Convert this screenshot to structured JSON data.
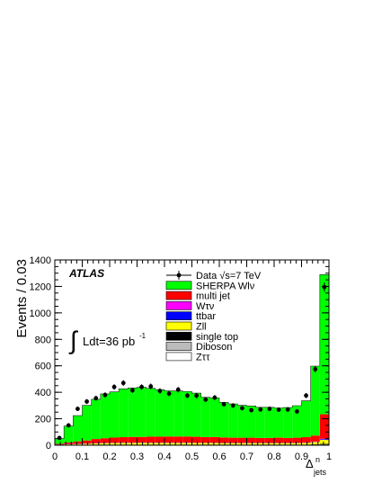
{
  "chart_data": {
    "type": "bar",
    "experiment_label": "ATLAS",
    "luminosity_label": "Ldt=36 pb",
    "luminosity_exponent": "-1",
    "xlabel": "Δ",
    "xlabel_super": "n",
    "xlabel_sub": "jets",
    "ylabel": "Events / 0.03",
    "xlim": [
      0,
      1
    ],
    "ylim": [
      0,
      1400
    ],
    "x_ticks": [
      "0",
      "0.1",
      "0.2",
      "0.3",
      "0.4",
      "0.5",
      "0.6",
      "0.7",
      "0.8",
      "0.9",
      "1"
    ],
    "y_ticks": [
      "0",
      "200",
      "400",
      "600",
      "800",
      "1000",
      "1200",
      "1400"
    ],
    "bin_width": 0.0333,
    "bins_low_edges": [
      0.0,
      0.0333,
      0.0667,
      0.1,
      0.1333,
      0.1667,
      0.2,
      0.2333,
      0.2667,
      0.3,
      0.3333,
      0.3667,
      0.4,
      0.4333,
      0.4667,
      0.5,
      0.5333,
      0.5667,
      0.6,
      0.6333,
      0.6667,
      0.7,
      0.7333,
      0.7667,
      0.8,
      0.8333,
      0.8667,
      0.9,
      0.9333,
      0.9667
    ],
    "legend": [
      {
        "label": "Data √s=7 TeV",
        "marker": "point"
      },
      {
        "label": "SHERPA Wlν",
        "color": "#00ff00"
      },
      {
        "label": "multi jet",
        "color": "#ff0000"
      },
      {
        "label": "Wτν",
        "color": "#ff00ff"
      },
      {
        "label": "ttbar",
        "color": "#0000ff"
      },
      {
        "label": "Zll",
        "color": "#ffff00"
      },
      {
        "label": "single top",
        "color": "#000000"
      },
      {
        "label": "Diboson",
        "color": "#bbbbbb"
      },
      {
        "label": "Zττ",
        "color": "#ffffff"
      }
    ],
    "series": [
      {
        "name": "Zττ",
        "color": "#ffffff",
        "values": [
          1,
          1,
          1,
          1,
          1,
          1,
          1,
          1,
          1,
          1,
          1,
          1,
          1,
          1,
          1,
          1,
          1,
          1,
          1,
          1,
          1,
          1,
          1,
          1,
          1,
          1,
          1,
          1,
          1,
          2
        ]
      },
      {
        "name": "Diboson",
        "color": "#bbbbbb",
        "values": [
          1,
          1,
          1,
          1,
          1,
          1,
          1,
          1,
          1,
          1,
          1,
          1,
          1,
          1,
          1,
          1,
          1,
          1,
          1,
          1,
          1,
          1,
          1,
          1,
          1,
          1,
          1,
          1,
          2,
          3
        ]
      },
      {
        "name": "single top",
        "color": "#000000",
        "values": [
          1,
          2,
          2,
          2,
          3,
          3,
          3,
          3,
          3,
          3,
          3,
          3,
          3,
          3,
          3,
          3,
          3,
          3,
          3,
          3,
          3,
          3,
          3,
          3,
          3,
          3,
          3,
          3,
          3,
          5
        ]
      },
      {
        "name": "Zll",
        "color": "#ffff00",
        "values": [
          2,
          4,
          6,
          8,
          10,
          12,
          13,
          14,
          14,
          14,
          14,
          14,
          14,
          14,
          14,
          13,
          13,
          13,
          12,
          12,
          12,
          12,
          12,
          12,
          12,
          12,
          12,
          14,
          18,
          30
        ]
      },
      {
        "name": "ttbar",
        "color": "#0000ff",
        "values": [
          0,
          1,
          1,
          1,
          1,
          1,
          1,
          1,
          1,
          1,
          1,
          1,
          1,
          1,
          1,
          1,
          1,
          1,
          1,
          1,
          1,
          1,
          1,
          1,
          1,
          1,
          1,
          1,
          2,
          6
        ]
      },
      {
        "name": "Wτν",
        "color": "#ff00ff",
        "values": [
          0,
          1,
          1,
          1,
          1,
          1,
          1,
          1,
          1,
          1,
          1,
          1,
          1,
          1,
          1,
          1,
          1,
          1,
          1,
          1,
          1,
          1,
          1,
          1,
          1,
          1,
          1,
          1,
          2,
          3
        ]
      },
      {
        "name": "multi jet",
        "color": "#ff0000",
        "values": [
          5,
          10,
          17,
          22,
          30,
          34,
          38,
          40,
          42,
          42,
          44,
          44,
          45,
          45,
          45,
          44,
          42,
          42,
          40,
          38,
          38,
          38,
          36,
          36,
          38,
          36,
          38,
          40,
          45,
          185
        ]
      },
      {
        "name": "SHERPA Wlν",
        "color": "#00ff00",
        "values": [
          40,
          125,
          195,
          265,
          300,
          335,
          345,
          365,
          370,
          375,
          365,
          355,
          345,
          345,
          340,
          330,
          300,
          295,
          265,
          255,
          245,
          240,
          232,
          232,
          225,
          230,
          242,
          275,
          525,
          1055
        ]
      }
    ],
    "data_points": {
      "x": [
        0.0167,
        0.05,
        0.0833,
        0.1167,
        0.15,
        0.1833,
        0.2167,
        0.25,
        0.2833,
        0.3167,
        0.35,
        0.3833,
        0.4167,
        0.45,
        0.4833,
        0.5167,
        0.55,
        0.5833,
        0.6167,
        0.65,
        0.6833,
        0.7167,
        0.75,
        0.7833,
        0.8167,
        0.85,
        0.8833,
        0.9167,
        0.95,
        0.9833
      ],
      "y": [
        55,
        150,
        275,
        330,
        355,
        380,
        440,
        470,
        415,
        440,
        445,
        410,
        390,
        420,
        375,
        375,
        345,
        360,
        310,
        300,
        280,
        265,
        270,
        275,
        268,
        270,
        255,
        375,
        575,
        1195
      ]
    },
    "grid": false
  }
}
